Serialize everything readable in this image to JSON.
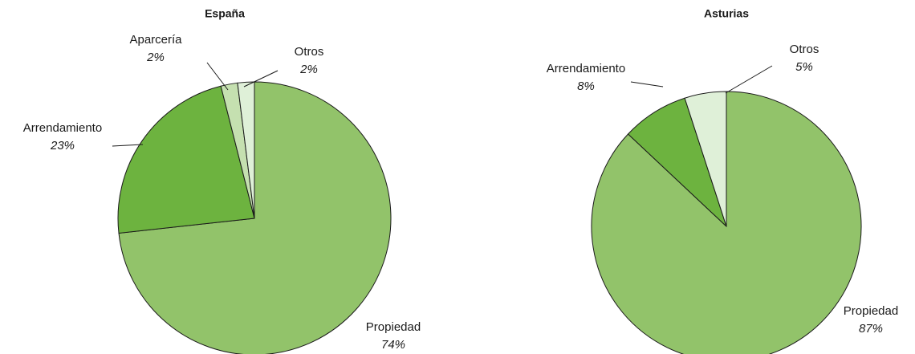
{
  "chart_data": [
    {
      "type": "pie",
      "title": "España",
      "categories": [
        "Propiedad",
        "Arrendamiento",
        "Aparcería",
        "Otros"
      ],
      "values": [
        74,
        23,
        2,
        2
      ],
      "value_labels": [
        "74%",
        "23%",
        "2%",
        "2%"
      ],
      "colors": [
        "#92c36a",
        "#6db33f",
        "#c5e0b0",
        "#dff0d8"
      ]
    },
    {
      "type": "pie",
      "title": "Asturias",
      "categories": [
        "Propiedad",
        "Arrendamiento",
        "Otros"
      ],
      "values": [
        87,
        8,
        5
      ],
      "value_labels": [
        "87%",
        "8%",
        "5%"
      ],
      "colors": [
        "#92c36a",
        "#6db33f",
        "#dff0d8"
      ]
    }
  ]
}
